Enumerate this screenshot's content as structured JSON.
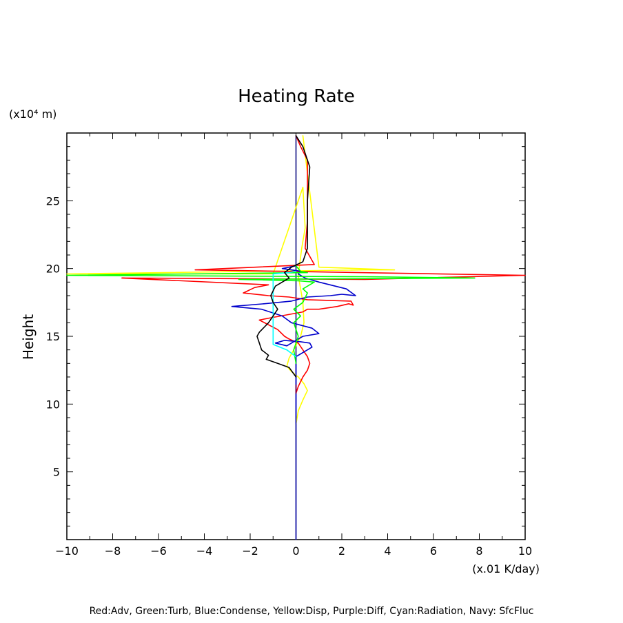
{
  "chart_data": {
    "type": "line",
    "title": "Heating Rate",
    "ylabel": "Height",
    "yunit": "(x10⁴ m)",
    "xunit": "(x.01 K/day)",
    "xlim": [
      -10,
      10
    ],
    "ylim": [
      0,
      30
    ],
    "xticks": [
      -10,
      -8,
      -6,
      -4,
      -2,
      0,
      2,
      4,
      6,
      8,
      10
    ],
    "yticks": [
      5,
      10,
      15,
      20,
      25
    ],
    "grid": false,
    "caption": "Red:Adv, Green:Turb, Blue:Condense, Yellow:Disp, Purple:Diff, Cyan:Radiation, Navy: SfcFluc",
    "series": [
      {
        "color": "#0a0a80",
        "x": [
          0,
          0
        ],
        "y": [
          0,
          29.8
        ]
      },
      {
        "color": "#ffff00",
        "x": [
          0,
          0,
          0.1,
          0.3,
          0.5,
          0.35,
          0.1,
          -0.2,
          -0.4,
          -0.3,
          -0.1,
          0.2,
          0.35,
          0.3,
          0.2,
          0.1,
          0.25,
          0.4,
          0.3,
          -1.0,
          -10.0,
          3.0,
          4.3,
          1.0,
          0.3
        ],
        "y": [
          0,
          8.5,
          9.5,
          10.3,
          11.0,
          11.5,
          12.0,
          12.4,
          12.8,
          13.4,
          14.0,
          15.0,
          16.0,
          17.5,
          18.5,
          19.5,
          21.5,
          23.0,
          26.0,
          19.6,
          19.6,
          19.9,
          19.9,
          20.1,
          29.8
        ]
      },
      {
        "color": "#ff0000",
        "x": [
          0,
          0.1,
          0.3,
          0.5,
          0.6,
          0.5,
          0.3,
          0.1,
          -0.3,
          -0.5,
          -0.8,
          -1.6,
          -1.0,
          0.3,
          0.5,
          1.0,
          1.8,
          2.3,
          2.5,
          2.4,
          0.5,
          -0.3,
          -1.2,
          -2.3,
          -1.8,
          -1.2,
          -7.6,
          3.0,
          10.0,
          -4.4,
          0.8,
          0.4,
          0.5,
          0.5,
          0.5,
          0.2,
          0
        ],
        "y": [
          10.8,
          11.3,
          12.0,
          12.5,
          13.0,
          13.5,
          14.0,
          14.5,
          14.8,
          15.0,
          15.5,
          16.2,
          16.4,
          16.8,
          17.0,
          17.0,
          17.2,
          17.4,
          17.3,
          17.6,
          17.7,
          17.9,
          18.0,
          18.2,
          18.6,
          18.8,
          19.3,
          19.2,
          19.5,
          19.9,
          20.3,
          21.5,
          23.5,
          26.0,
          28.0,
          29.0,
          29.8
        ]
      },
      {
        "color": "#0000cc",
        "x": [
          0,
          0,
          0.7,
          0.6,
          0.2,
          -0.5,
          -0.9,
          -0.4,
          0.3,
          1.0,
          0.7,
          -0.2,
          -0.6,
          -1.5,
          -2.8,
          -1.4,
          -0.2,
          0.5,
          1.5,
          2.0,
          2.6,
          2.2,
          1.0,
          0.4,
          0.1,
          0.2,
          -0.6,
          0
        ],
        "y": [
          0,
          13.5,
          14.2,
          14.5,
          14.6,
          14.7,
          14.5,
          14.3,
          15.0,
          15.2,
          15.6,
          16.0,
          16.5,
          17.0,
          17.2,
          17.4,
          17.6,
          17.9,
          18.0,
          18.1,
          18.0,
          18.5,
          19.0,
          19.3,
          19.6,
          19.8,
          20.0,
          20.2
        ]
      },
      {
        "color": "#00ff00",
        "x": [
          0,
          -0.1,
          0.1,
          -0.1,
          0.2,
          -0.1,
          0.3,
          0.5,
          0.3,
          0.8,
          0.1,
          -2.5,
          7.8,
          3.0,
          -10.0,
          0.5,
          0.2,
          0.1,
          0
        ],
        "y": [
          13.0,
          14.0,
          15.0,
          16.0,
          16.5,
          17.0,
          17.5,
          18.2,
          18.5,
          19.0,
          19.1,
          19.2,
          19.3,
          19.4,
          19.5,
          19.7,
          19.8,
          20.0,
          20.2
        ]
      },
      {
        "color": "#00ffff",
        "x": [
          0,
          -0.4,
          -1.0,
          -1.0,
          -1.0,
          -1.0,
          -0.3,
          0
        ],
        "y": [
          13.5,
          14.0,
          14.4,
          16.5,
          18.0,
          19.6,
          19.7,
          19.8
        ]
      },
      {
        "color": "#000000",
        "x": [
          0,
          -0.3,
          -0.8,
          -1.3,
          -1.2,
          -1.5,
          -1.6,
          -1.7,
          -1.6,
          -1.2,
          -1.0,
          -0.8,
          -1.0,
          -1.1,
          -0.9,
          -0.3,
          -0.5,
          -0.2,
          0.3,
          0.5,
          0.5,
          0.5,
          0.6,
          0.3,
          0
        ],
        "y": [
          12.0,
          12.7,
          13.0,
          13.3,
          13.6,
          14.0,
          14.5,
          15.0,
          15.3,
          16.0,
          16.5,
          17.0,
          17.5,
          18.0,
          18.7,
          19.3,
          19.7,
          20.1,
          20.5,
          21.5,
          23.0,
          25.0,
          27.5,
          29.0,
          29.8
        ]
      },
      {
        "color": "#800040",
        "x": [
          0,
          0
        ],
        "y": [
          10.8,
          11.4
        ]
      }
    ]
  }
}
